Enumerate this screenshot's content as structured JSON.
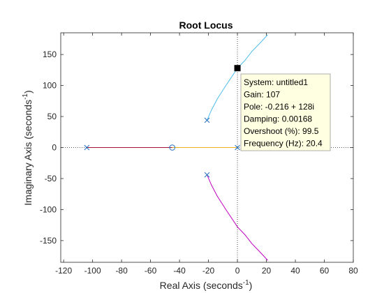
{
  "chart_data": {
    "type": "line",
    "title": "Root Locus",
    "xlabel": "Real Axis (seconds",
    "xlabel_sup": "-1",
    "xlabel_end": ")",
    "ylabel": "Imaginary Axis (seconds",
    "ylabel_sup": "-1",
    "ylabel_end": ")",
    "xlim": [
      -122,
      80
    ],
    "ylim": [
      -185,
      185
    ],
    "xticks": [
      -120,
      -100,
      -80,
      -60,
      -40,
      -20,
      0,
      20,
      40,
      60,
      80
    ],
    "yticks": [
      -150,
      -100,
      -50,
      0,
      50,
      100,
      150
    ],
    "grid": false,
    "zero_lines": true,
    "series": [
      {
        "color": "#A2142F",
        "points": [
          [
            -104,
            0
          ],
          [
            -45,
            0
          ]
        ]
      },
      {
        "color": "#EDB120",
        "points": [
          [
            -45,
            0
          ],
          [
            0,
            0
          ]
        ]
      },
      {
        "color": "#4DBEEE",
        "points": [
          [
            -21,
            44
          ],
          [
            -18,
            60
          ],
          [
            -14,
            78
          ],
          [
            -8,
            100
          ],
          [
            0,
            128
          ],
          [
            5,
            140
          ],
          [
            10,
            155
          ],
          [
            15,
            167
          ],
          [
            21,
            182
          ]
        ]
      },
      {
        "color": "#C000C0",
        "points": [
          [
            -21,
            -44
          ],
          [
            -18,
            -60
          ],
          [
            -14,
            -78
          ],
          [
            -8,
            -100
          ],
          [
            0,
            -128
          ],
          [
            5,
            -140
          ],
          [
            10,
            -155
          ],
          [
            15,
            -167
          ],
          [
            21,
            -182
          ]
        ]
      }
    ],
    "poles": [
      [
        -104,
        0
      ],
      [
        0,
        0
      ],
      [
        -21,
        44
      ],
      [
        -21,
        -44
      ]
    ],
    "zeros": [
      [
        -45,
        0
      ]
    ],
    "marker": [
      0,
      128
    ],
    "datatip": {
      "lines": [
        "System: untitled1",
        "Gain: 107",
        "Pole: -0.216 + 128i",
        "Damping: 0.00168",
        "Overshoot (%): 99.5",
        "Frequency (Hz): 20.4"
      ]
    }
  }
}
